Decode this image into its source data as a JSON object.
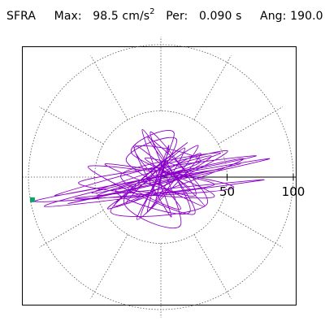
{
  "header": {
    "record": "SFRA",
    "max_label": "Max:",
    "max_value": "98.5",
    "max_unit": "cm/s",
    "max_unit_exp": "2",
    "period_label": "Per:",
    "period_value": "0.090 s",
    "angle_label": "Ang:",
    "angle_value": "190.0"
  },
  "chart_data": {
    "type": "polar-orbit",
    "title": "SFRA",
    "r_ticks": [
      50,
      100
    ],
    "r_max": 100,
    "max_accel": 98.5,
    "max_angle_deg": 190.0,
    "period_s": 0.09,
    "grid": true,
    "spoke_step_deg": 30,
    "colors": {
      "trace": "#8B00C8",
      "marker": "#0BA36B",
      "grid": "#555555",
      "axis": "#000000"
    },
    "trace_points": [
      [
        0,
        0
      ],
      [
        18,
        6
      ],
      [
        -12,
        14
      ],
      [
        22,
        -10
      ],
      [
        -25,
        -8
      ],
      [
        30,
        12
      ],
      [
        -20,
        22
      ],
      [
        15,
        -24
      ],
      [
        -30,
        2
      ],
      [
        45,
        18
      ],
      [
        -48,
        -14
      ],
      [
        60,
        10
      ],
      [
        -70,
        -20
      ],
      [
        82,
        14
      ],
      [
        -95,
        -18
      ],
      [
        40,
        -6
      ],
      [
        -55,
        8
      ],
      [
        25,
        -28
      ],
      [
        -10,
        30
      ],
      [
        35,
        -20
      ],
      [
        -38,
        -26
      ],
      [
        28,
        24
      ],
      [
        -15,
        -30
      ],
      [
        10,
        33
      ],
      [
        -22,
        18
      ],
      [
        40,
        -15
      ],
      [
        -62,
        -4
      ],
      [
        72,
        16
      ],
      [
        -80,
        -14
      ],
      [
        50,
        20
      ],
      [
        -35,
        -22
      ],
      [
        20,
        26
      ],
      [
        -28,
        -18
      ],
      [
        15,
        -36
      ],
      [
        -8,
        34
      ],
      [
        26,
        -14
      ],
      [
        -42,
        10
      ],
      [
        55,
        -8
      ],
      [
        -65,
        -16
      ],
      [
        78,
        -2
      ],
      [
        -88,
        -22
      ],
      [
        62,
        14
      ],
      [
        -40,
        -24
      ],
      [
        30,
        18
      ],
      [
        -18,
        -32
      ],
      [
        12,
        28
      ],
      [
        -26,
        12
      ],
      [
        33,
        -22
      ],
      [
        -20,
        24
      ],
      [
        8,
        -30
      ],
      [
        -14,
        36
      ],
      [
        22,
        -26
      ],
      [
        -34,
        -10
      ],
      [
        44,
        6
      ],
      [
        -52,
        -12
      ],
      [
        38,
        16
      ],
      [
        -26,
        -20
      ],
      [
        18,
        22
      ],
      [
        -10,
        -26
      ],
      [
        6,
        24
      ],
      [
        -4,
        -18
      ],
      [
        3,
        12
      ],
      [
        -2,
        -6
      ],
      [
        0,
        0
      ]
    ]
  }
}
